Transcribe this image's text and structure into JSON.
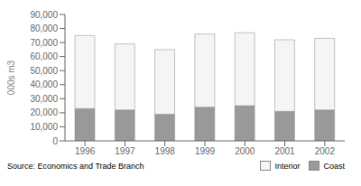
{
  "chart_data": {
    "type": "bar",
    "stacked": true,
    "categories": [
      "1996",
      "1997",
      "1998",
      "1999",
      "2000",
      "2001",
      "2002"
    ],
    "series": [
      {
        "name": "Coast",
        "color": "#999999",
        "values": [
          23000,
          22000,
          19000,
          24000,
          25000,
          21000,
          22000
        ]
      },
      {
        "name": "Interior",
        "color": "#f5f5f5",
        "values": [
          52000,
          47000,
          46000,
          52000,
          52000,
          51000,
          51000
        ]
      }
    ],
    "ylabel": "000s m3",
    "ylim": [
      0,
      90000
    ],
    "yticks": [
      0,
      {
        "value": 10000,
        "label": "10,000"
      },
      {
        "value": 20000,
        "label": "20,000"
      },
      {
        "value": 30000,
        "label": "30,000"
      },
      {
        "value": 40000,
        "label": "40,000"
      },
      {
        "value": 50000,
        "label": "50,000"
      },
      {
        "value": 60000,
        "label": "60,000"
      },
      {
        "value": 70000,
        "label": "70,000"
      },
      {
        "value": 80000,
        "label": "80,000"
      },
      {
        "value": 90000,
        "label": "90,000"
      }
    ],
    "legend": "lower right",
    "grid": false,
    "annotations": [
      "Source: Economics and Trade Branch"
    ]
  }
}
